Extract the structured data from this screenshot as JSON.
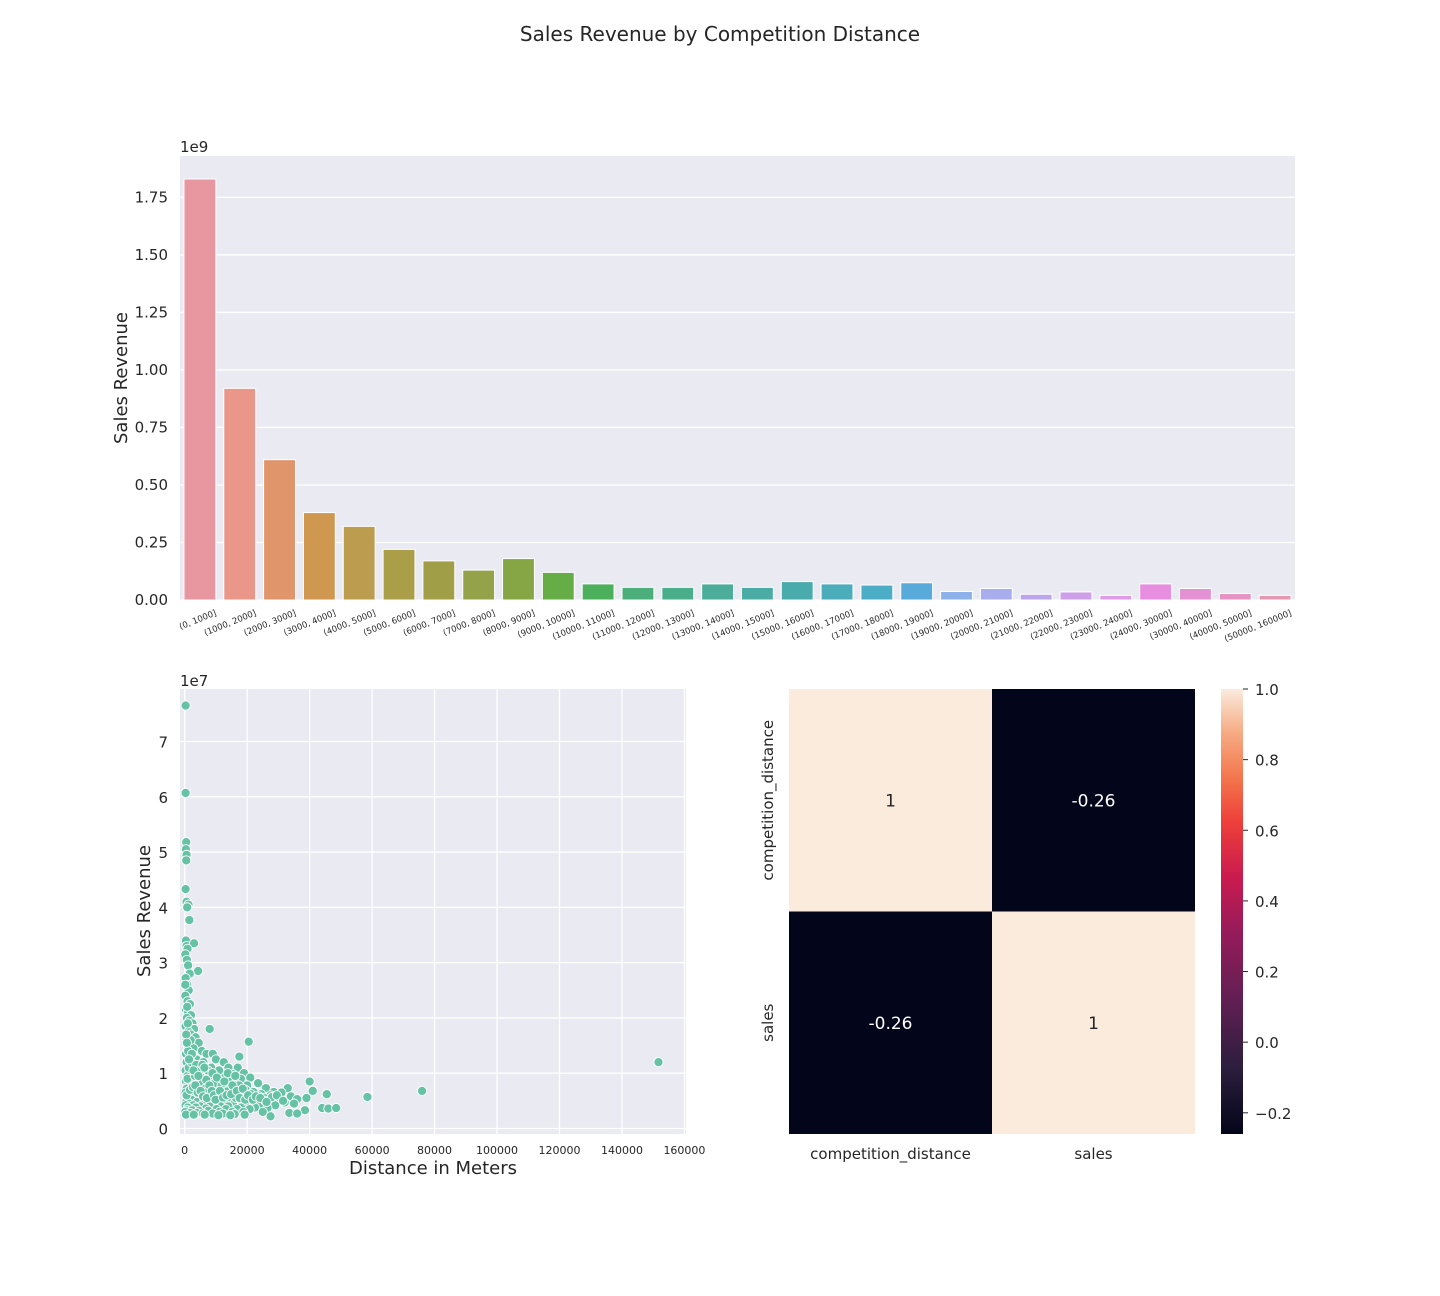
{
  "figure": {
    "suptitle": "Sales Revenue by Competition Distance"
  },
  "chart_data": [
    {
      "type": "bar",
      "title": "",
      "xlabel": "",
      "ylabel": "Sales Revenue",
      "offset_text": "1e9",
      "ylim": [
        0,
        1.93
      ],
      "yticks": [
        0.0,
        0.25,
        0.5,
        0.75,
        1.0,
        1.25,
        1.5,
        1.75
      ],
      "ytick_labels": [
        "0.00",
        "0.25",
        "0.50",
        "0.75",
        "1.00",
        "1.25",
        "1.50",
        "1.75"
      ],
      "categories": [
        "(0, 1000]",
        "(1000, 2000]",
        "(2000, 3000]",
        "(3000, 4000]",
        "(4000, 5000]",
        "(5000, 6000]",
        "(6000, 7000]",
        "(7000, 8000]",
        "(8000, 9000]",
        "(9000, 10000]",
        "(10000, 11000]",
        "(11000, 12000]",
        "(12000, 13000]",
        "(13000, 14000]",
        "(14000, 15000]",
        "(15000, 16000]",
        "(16000, 17000]",
        "(17000, 18000]",
        "(18000, 19000]",
        "(19000, 20000]",
        "(20000, 21000]",
        "(21000, 22000]",
        "(22000, 23000]",
        "(23000, 24000]",
        "(24000, 30000]",
        "(30000, 40000]",
        "(40000, 50000]",
        "(50000, 160000]"
      ],
      "values": [
        1.83,
        0.92,
        0.61,
        0.38,
        0.32,
        0.22,
        0.17,
        0.13,
        0.18,
        0.12,
        0.07,
        0.055,
        0.055,
        0.07,
        0.055,
        0.08,
        0.07,
        0.065,
        0.075,
        0.037,
        0.05,
        0.025,
        0.035,
        0.02,
        0.07,
        0.05,
        0.028,
        0.02
      ],
      "colors": [
        "#e8969f",
        "#ea978a",
        "#e0956a",
        "#cf9750",
        "#bc9c4e",
        "#ab9e48",
        "#a09f47",
        "#94a34a",
        "#86a645",
        "#66ac47",
        "#4caf5b",
        "#4cae7a",
        "#4bae8a",
        "#4bad9a",
        "#4aaca4",
        "#4aabad",
        "#4bacba",
        "#4cadc7",
        "#58aadb",
        "#8cb2e9",
        "#a7aded",
        "#bba6ec",
        "#cfa0ea",
        "#dd9bea",
        "#e88ee0",
        "#e491d4",
        "#e493c4",
        "#e598b2"
      ]
    },
    {
      "type": "scatter",
      "title": "",
      "xlabel": "Distance in Meters",
      "ylabel": "Sales Revenue",
      "offset_text": "1e7",
      "xlim": [
        -1500,
        160500
      ],
      "ylim": [
        -0.1,
        7.95
      ],
      "xticks": [
        0,
        20000,
        40000,
        60000,
        80000,
        100000,
        120000,
        140000,
        160000
      ],
      "xtick_labels": [
        "0",
        "20000",
        "40000",
        "60000",
        "80000",
        "100000",
        "120000",
        "140000",
        "160000"
      ],
      "yticks": [
        0,
        1,
        2,
        3,
        4,
        5,
        6,
        7
      ],
      "ytick_labels": [
        "0",
        "1",
        "2",
        "3",
        "4",
        "5",
        "6",
        "7"
      ],
      "point_color": "#66c2a5",
      "points": [
        [
          300,
          7.65
        ],
        [
          300,
          6.07
        ],
        [
          500,
          5.18
        ],
        [
          400,
          5.05
        ],
        [
          600,
          4.95
        ],
        [
          500,
          4.85
        ],
        [
          300,
          4.33
        ],
        [
          600,
          4.1
        ],
        [
          1200,
          4.05
        ],
        [
          800,
          4.0
        ],
        [
          1500,
          3.77
        ],
        [
          400,
          3.4
        ],
        [
          600,
          3.3
        ],
        [
          3000,
          3.35
        ],
        [
          900,
          3.25
        ],
        [
          200,
          3.15
        ],
        [
          700,
          3.05
        ],
        [
          1100,
          2.95
        ],
        [
          4300,
          2.85
        ],
        [
          1600,
          2.8
        ],
        [
          300,
          2.72
        ],
        [
          800,
          2.6
        ],
        [
          1300,
          2.5
        ],
        [
          200,
          2.4
        ],
        [
          900,
          2.3
        ],
        [
          1700,
          2.25
        ],
        [
          400,
          2.15
        ],
        [
          1100,
          2.1
        ],
        [
          2000,
          2.05
        ],
        [
          700,
          2.0
        ],
        [
          1500,
          1.95
        ],
        [
          2500,
          1.9
        ],
        [
          300,
          1.85
        ],
        [
          3000,
          1.8
        ],
        [
          8000,
          1.8
        ],
        [
          1200,
          1.75
        ],
        [
          2000,
          1.7
        ],
        [
          3500,
          1.65
        ],
        [
          600,
          1.6
        ],
        [
          4500,
          1.55
        ],
        [
          20500,
          1.57
        ],
        [
          1000,
          1.5
        ],
        [
          2800,
          1.45
        ],
        [
          5500,
          1.4
        ],
        [
          400,
          1.35
        ],
        [
          7000,
          1.35
        ],
        [
          9000,
          1.35
        ],
        [
          17500,
          1.3
        ],
        [
          1800,
          1.3
        ],
        [
          3800,
          1.25
        ],
        [
          10000,
          1.25
        ],
        [
          600,
          1.2
        ],
        [
          6000,
          1.2
        ],
        [
          12500,
          1.2
        ],
        [
          151700,
          1.2
        ],
        [
          2200,
          1.15
        ],
        [
          4800,
          1.12
        ],
        [
          8500,
          1.1
        ],
        [
          14000,
          1.1
        ],
        [
          17000,
          1.1
        ],
        [
          300,
          1.05
        ],
        [
          3200,
          1.05
        ],
        [
          11000,
          1.05
        ],
        [
          19000,
          1.0
        ],
        [
          1500,
          1.0
        ],
        [
          6800,
          1.0
        ],
        [
          15500,
          0.98
        ],
        [
          900,
          0.95
        ],
        [
          5000,
          0.95
        ],
        [
          9500,
          0.95
        ],
        [
          13000,
          0.93
        ],
        [
          21000,
          0.92
        ],
        [
          2500,
          0.9
        ],
        [
          7500,
          0.9
        ],
        [
          18000,
          0.9
        ],
        [
          400,
          0.85
        ],
        [
          4000,
          0.85
        ],
        [
          11500,
          0.85
        ],
        [
          16000,
          0.85
        ],
        [
          40000,
          0.85
        ],
        [
          23500,
          0.82
        ],
        [
          1200,
          0.8
        ],
        [
          6200,
          0.8
        ],
        [
          10500,
          0.8
        ],
        [
          14500,
          0.8
        ],
        [
          20000,
          0.78
        ],
        [
          3500,
          0.75
        ],
        [
          8800,
          0.75
        ],
        [
          12800,
          0.75
        ],
        [
          600,
          0.72
        ],
        [
          26000,
          0.73
        ],
        [
          33000,
          0.73
        ],
        [
          5500,
          0.7
        ],
        [
          17800,
          0.7
        ],
        [
          19500,
          0.7
        ],
        [
          41000,
          0.68
        ],
        [
          2000,
          0.68
        ],
        [
          9800,
          0.68
        ],
        [
          15000,
          0.67
        ],
        [
          22000,
          0.66
        ],
        [
          28500,
          0.66
        ],
        [
          31000,
          0.65
        ],
        [
          76000,
          0.68
        ],
        [
          300,
          0.65
        ],
        [
          4500,
          0.62
        ],
        [
          7800,
          0.62
        ],
        [
          12000,
          0.62
        ],
        [
          24500,
          0.62
        ],
        [
          45500,
          0.62
        ],
        [
          1600,
          0.6
        ],
        [
          6500,
          0.6
        ],
        [
          11000,
          0.6
        ],
        [
          16500,
          0.6
        ],
        [
          27500,
          0.6
        ],
        [
          34000,
          0.58
        ],
        [
          58500,
          0.57
        ],
        [
          800,
          0.55
        ],
        [
          3000,
          0.55
        ],
        [
          8500,
          0.55
        ],
        [
          13500,
          0.55
        ],
        [
          20500,
          0.55
        ],
        [
          25500,
          0.55
        ],
        [
          30000,
          0.53
        ],
        [
          36000,
          0.53
        ],
        [
          39000,
          0.55
        ],
        [
          2200,
          0.52
        ],
        [
          5200,
          0.52
        ],
        [
          10000,
          0.5
        ],
        [
          14800,
          0.5
        ],
        [
          18500,
          0.5
        ],
        [
          23000,
          0.5
        ],
        [
          32000,
          0.47
        ],
        [
          500,
          0.48
        ],
        [
          4000,
          0.48
        ],
        [
          7200,
          0.48
        ],
        [
          12500,
          0.47
        ],
        [
          17000,
          0.46
        ],
        [
          21500,
          0.45
        ],
        [
          27000,
          0.45
        ],
        [
          1400,
          0.45
        ],
        [
          6000,
          0.45
        ],
        [
          9200,
          0.44
        ],
        [
          15500,
          0.43
        ],
        [
          19500,
          0.42
        ],
        [
          24000,
          0.42
        ],
        [
          29000,
          0.42
        ],
        [
          300,
          0.42
        ],
        [
          2700,
          0.42
        ],
        [
          5000,
          0.4
        ],
        [
          8000,
          0.4
        ],
        [
          11500,
          0.4
        ],
        [
          14000,
          0.4
        ],
        [
          18000,
          0.38
        ],
        [
          22500,
          0.38
        ],
        [
          26500,
          0.37
        ],
        [
          44000,
          0.37
        ],
        [
          46000,
          0.36
        ],
        [
          48500,
          0.37
        ],
        [
          1000,
          0.38
        ],
        [
          3600,
          0.38
        ],
        [
          6800,
          0.36
        ],
        [
          10200,
          0.35
        ],
        [
          13200,
          0.35
        ],
        [
          16800,
          0.35
        ],
        [
          20800,
          0.35
        ],
        [
          38500,
          0.33
        ],
        [
          700,
          0.33
        ],
        [
          2400,
          0.33
        ],
        [
          4600,
          0.32
        ],
        [
          7600,
          0.32
        ],
        [
          11200,
          0.3
        ],
        [
          15200,
          0.3
        ],
        [
          18800,
          0.3
        ],
        [
          25000,
          0.3
        ],
        [
          33500,
          0.28
        ],
        [
          36000,
          0.27
        ],
        [
          200,
          0.3
        ],
        [
          1800,
          0.28
        ],
        [
          3900,
          0.28
        ],
        [
          5800,
          0.27
        ],
        [
          9000,
          0.27
        ],
        [
          12200,
          0.27
        ],
        [
          16000,
          0.26
        ],
        [
          19200,
          0.25
        ],
        [
          27500,
          0.22
        ],
        [
          400,
          0.25
        ],
        [
          2900,
          0.25
        ],
        [
          6400,
          0.25
        ],
        [
          10800,
          0.24
        ],
        [
          14600,
          0.24
        ],
        [
          600,
          0.6
        ],
        [
          900,
          0.9
        ],
        [
          1300,
          1.1
        ],
        [
          1700,
          0.7
        ],
        [
          2100,
          1.2
        ],
        [
          2600,
          0.75
        ],
        [
          3300,
          0.95
        ],
        [
          4200,
          0.65
        ],
        [
          5300,
          0.85
        ],
        [
          6600,
          0.72
        ],
        [
          7400,
          1.05
        ],
        [
          8300,
          0.58
        ],
        [
          9600,
          0.82
        ],
        [
          10600,
          0.62
        ],
        [
          11800,
          0.77
        ],
        [
          13600,
          0.67
        ],
        [
          14200,
          0.88
        ],
        [
          15800,
          0.72
        ],
        [
          16400,
          0.55
        ],
        [
          18300,
          0.62
        ],
        [
          19800,
          0.58
        ],
        [
          21200,
          0.62
        ],
        [
          23800,
          0.58
        ],
        [
          25800,
          0.5
        ],
        [
          28000,
          0.57
        ],
        [
          1100,
          1.4
        ],
        [
          1900,
          1.6
        ],
        [
          2300,
          1.35
        ],
        [
          3700,
          1.15
        ],
        [
          4900,
          1.05
        ],
        [
          5700,
          1.15
        ],
        [
          6900,
          0.88
        ],
        [
          8900,
          1.0
        ],
        [
          10300,
          0.92
        ],
        [
          12700,
          0.85
        ],
        [
          13800,
          1.0
        ],
        [
          16200,
          0.95
        ],
        [
          17400,
          0.78
        ],
        [
          500,
          1.7
        ],
        [
          800,
          2.2
        ],
        [
          1000,
          1.9
        ],
        [
          200,
          2.6
        ],
        [
          700,
          1.55
        ],
        [
          1400,
          1.25
        ],
        [
          2800,
          1.05
        ],
        [
          3400,
          0.78
        ],
        [
          4400,
          0.95
        ],
        [
          5100,
          0.68
        ],
        [
          5900,
          0.58
        ],
        [
          6300,
          1.1
        ],
        [
          7100,
          0.55
        ],
        [
          7900,
          0.78
        ],
        [
          8700,
          0.68
        ],
        [
          9400,
          0.6
        ],
        [
          9900,
          0.52
        ],
        [
          11300,
          0.68
        ],
        [
          12300,
          0.56
        ],
        [
          13400,
          0.6
        ],
        [
          14900,
          0.62
        ],
        [
          15300,
          0.78
        ],
        [
          16700,
          0.68
        ],
        [
          17600,
          0.55
        ],
        [
          18600,
          0.72
        ],
        [
          19400,
          0.52
        ],
        [
          20300,
          0.6
        ],
        [
          21800,
          0.52
        ],
        [
          22800,
          0.58
        ],
        [
          24200,
          0.55
        ],
        [
          26200,
          0.48
        ],
        [
          29500,
          0.6
        ],
        [
          31500,
          0.5
        ],
        [
          35000,
          0.45
        ]
      ]
    },
    {
      "type": "heatmap",
      "title": "",
      "row_labels": [
        "competition_distance",
        "sales"
      ],
      "col_labels": [
        "competition_distance",
        "sales"
      ],
      "values": [
        [
          1,
          -0.26
        ],
        [
          -0.26,
          1
        ]
      ],
      "cell_labels": [
        [
          "1",
          "-0.26"
        ],
        [
          "-0.26",
          "1"
        ]
      ],
      "colorbar": {
        "vmin": -0.26,
        "vmax": 1.0,
        "ticks": [
          -0.2,
          0.0,
          0.2,
          0.4,
          0.6,
          0.8,
          1.0
        ],
        "tick_labels": [
          "−0.2",
          "0.0",
          "0.2",
          "0.4",
          "0.6",
          "0.8",
          "1.0"
        ]
      }
    }
  ]
}
